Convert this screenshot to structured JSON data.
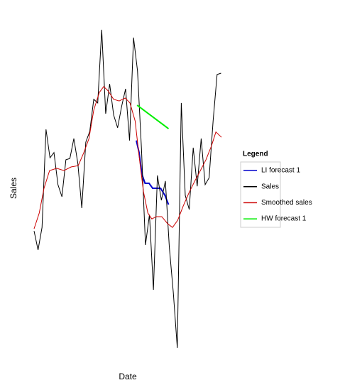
{
  "chart_data": {
    "type": "line",
    "xlabel": "Date",
    "ylabel": "Sales",
    "legend_title": "Legend",
    "legend": "right",
    "xlim": [
      0,
      47.1
    ],
    "ylim": [
      0,
      100
    ],
    "series": [
      {
        "name": "LI forecast 1",
        "color": "#0000cc",
        "width": 2,
        "x": [
          25.7,
          26.4,
          27.1,
          27.9,
          28.9,
          29.8,
          30.7,
          31.8,
          32.9,
          33.8
        ],
        "values": [
          65.7,
          62.0,
          55.4,
          52.6,
          52.6,
          51.1,
          51.1,
          51.1,
          48.9,
          46.1
        ]
      },
      {
        "name": "Sales",
        "color": "#000000",
        "width": 1,
        "x": [
          0,
          1,
          2,
          3,
          4,
          5,
          6,
          7,
          8,
          9,
          10,
          11,
          12,
          13,
          14,
          15,
          16,
          17,
          18,
          19,
          20,
          21,
          22,
          23,
          24,
          25,
          26,
          27,
          28,
          29,
          30,
          31,
          32,
          33,
          34,
          35,
          36,
          37,
          38,
          39,
          40,
          41,
          42,
          43,
          44,
          45,
          46,
          47
        ],
        "values": [
          38.0,
          32.2,
          39.1,
          69.1,
          60.4,
          62.0,
          52.2,
          48.5,
          59.8,
          60.2,
          66.3,
          58.7,
          45.0,
          65.2,
          68.5,
          78.3,
          77.2,
          99.6,
          73.9,
          83.0,
          73.5,
          69.6,
          76.1,
          81.5,
          65.7,
          97.2,
          87.0,
          63.0,
          33.7,
          43.0,
          20.0,
          55.0,
          47.4,
          53.3,
          33.0,
          19.1,
          2.2,
          77.2,
          48.9,
          44.6,
          63.5,
          51.7,
          66.3,
          52.2,
          54.3,
          71.7,
          85.9,
          86.3
        ]
      },
      {
        "name": "Smoothed sales",
        "color": "#cc0000",
        "width": 1,
        "x": [
          0,
          1.3,
          2.5,
          3.9,
          5.7,
          7.5,
          9.3,
          11.1,
          12.5,
          13.8,
          15,
          16.4,
          17.5,
          18.6,
          20,
          21.4,
          22.9,
          24.1,
          25.4,
          26.4,
          27.5,
          28.6,
          29.6,
          30.7,
          32.1,
          33.6,
          34.8,
          36.1,
          37.5,
          38.9,
          40.4,
          41.8,
          43.2,
          44.6,
          45.7,
          47.1
        ],
        "values": [
          38.7,
          43.5,
          51.1,
          56.5,
          57.2,
          56.5,
          57.6,
          58.0,
          62.0,
          66.3,
          75.0,
          80.4,
          82.2,
          80.9,
          78.3,
          77.8,
          78.7,
          77.2,
          71.7,
          60.9,
          50.0,
          43.5,
          41.7,
          42.4,
          42.4,
          40.2,
          39.1,
          41.3,
          45.7,
          49.6,
          53.3,
          56.5,
          59.8,
          64.1,
          68.3,
          66.7
        ]
      },
      {
        "name": "HW forecast 1",
        "color": "#00ee00",
        "width": 2,
        "x": [
          25.9,
          33.8
        ],
        "values": [
          76.5,
          69.3
        ]
      }
    ]
  }
}
